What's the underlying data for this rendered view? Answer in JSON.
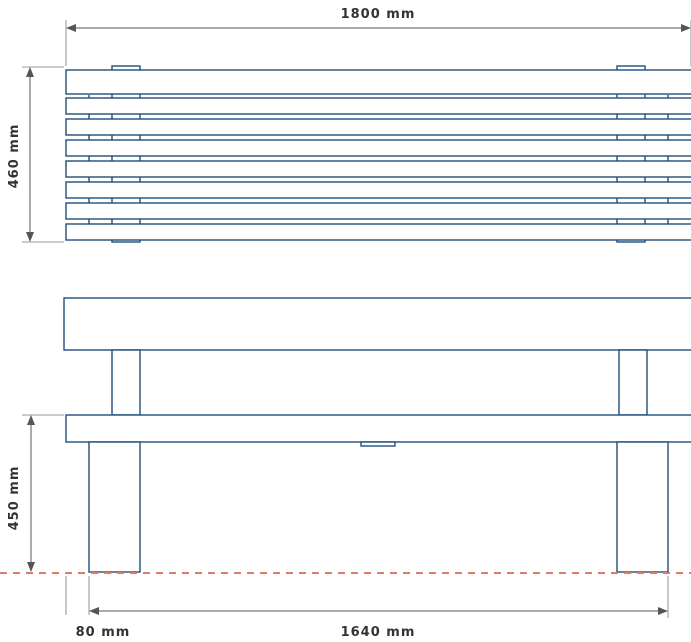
{
  "dimensions": {
    "overall_length": "1800 mm",
    "depth": "460 mm",
    "seat_height": "450 mm",
    "leg_width": "80 mm",
    "leg_spacing": "1640 mm"
  },
  "colors": {
    "outline": "#1f4e79",
    "dimension_line": "#555555",
    "ground_line": "#e07b6a",
    "text": "#333333"
  }
}
